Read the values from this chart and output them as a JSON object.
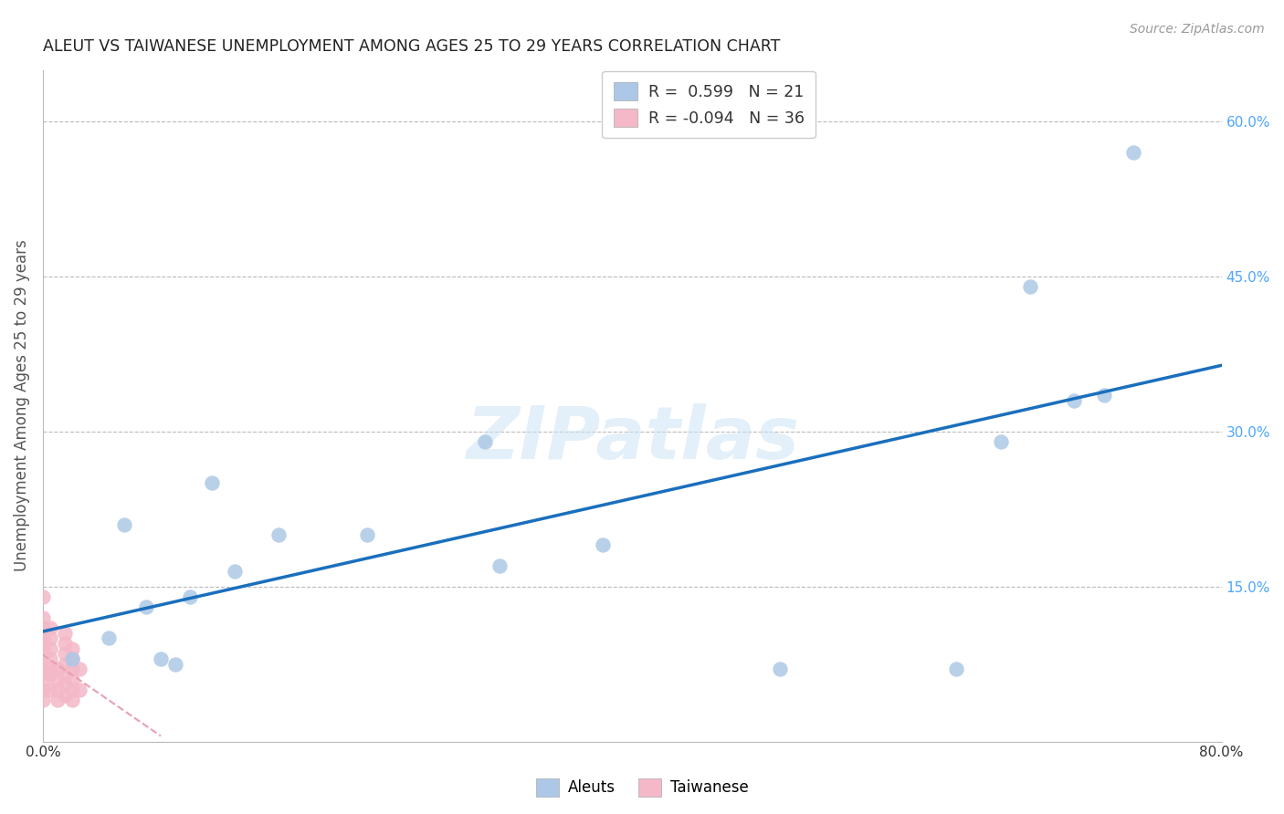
{
  "title": "ALEUT VS TAIWANESE UNEMPLOYMENT AMONG AGES 25 TO 29 YEARS CORRELATION CHART",
  "source": "Source: ZipAtlas.com",
  "ylabel": "Unemployment Among Ages 25 to 29 years",
  "xlim": [
    0,
    80
  ],
  "ylim": [
    0,
    65
  ],
  "xtick_positions": [
    0,
    10,
    20,
    30,
    40,
    50,
    60,
    70,
    80
  ],
  "xticklabels": [
    "0.0%",
    "",
    "",
    "",
    "",
    "",
    "",
    "",
    "80.0%"
  ],
  "ytick_positions": [
    0,
    15,
    30,
    45,
    60
  ],
  "yticklabels": [
    "",
    "15.0%",
    "30.0%",
    "45.0%",
    "60.0%"
  ],
  "aleuts_x": [
    2.0,
    4.5,
    5.5,
    7.0,
    8.0,
    9.0,
    10.0,
    11.5,
    13.0,
    16.0,
    22.0,
    30.0,
    31.0,
    38.0,
    50.0,
    62.0,
    65.0,
    67.0,
    70.0,
    72.0,
    74.0
  ],
  "aleuts_y": [
    8.0,
    10.0,
    21.0,
    13.0,
    8.0,
    7.5,
    14.0,
    25.0,
    16.5,
    20.0,
    20.0,
    29.0,
    17.0,
    19.0,
    7.0,
    7.0,
    29.0,
    44.0,
    33.0,
    33.5,
    57.0
  ],
  "taiwanese_x": [
    0.0,
    0.0,
    0.0,
    0.0,
    0.0,
    0.0,
    0.0,
    0.0,
    0.0,
    0.0,
    0.5,
    0.5,
    0.5,
    0.5,
    0.5,
    0.5,
    0.5,
    1.0,
    1.0,
    1.0,
    1.0,
    1.5,
    1.5,
    1.5,
    1.5,
    1.5,
    1.5,
    1.5,
    2.0,
    2.0,
    2.0,
    2.0,
    2.0,
    2.0,
    2.5,
    2.5
  ],
  "taiwanese_y": [
    4.0,
    5.0,
    6.0,
    7.0,
    8.0,
    9.0,
    10.0,
    11.0,
    12.0,
    14.0,
    5.0,
    6.5,
    7.0,
    8.0,
    9.0,
    10.0,
    11.0,
    4.0,
    5.0,
    6.0,
    7.0,
    4.5,
    5.5,
    6.5,
    7.5,
    8.5,
    9.5,
    10.5,
    4.0,
    5.0,
    6.0,
    7.0,
    8.0,
    9.0,
    5.0,
    7.0
  ],
  "aleuts_color": "#adc8e6",
  "taiwanese_color": "#f4b8c8",
  "aleuts_line_color": "#1a6fbd",
  "taiwanese_line_color": "#e8a0b0",
  "aleuts_R": 0.599,
  "aleuts_N": 21,
  "taiwanese_R": -0.094,
  "taiwanese_N": 36,
  "watermark": "ZIPatlas",
  "background_color": "#ffffff",
  "grid_color": "#bbbbbb"
}
